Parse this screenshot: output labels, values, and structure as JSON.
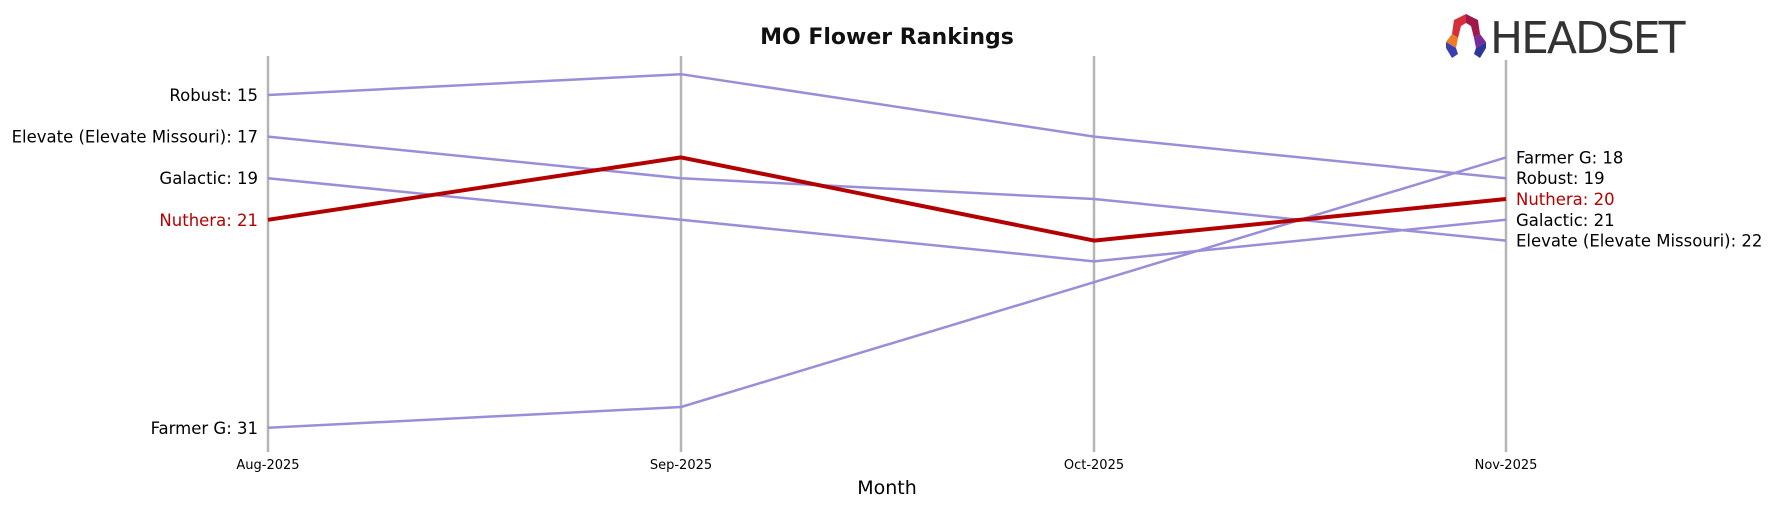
{
  "chart_data": {
    "type": "line",
    "subtype": "bump",
    "title": "MO Flower Rankings",
    "xlabel": "Month",
    "ylabel": "",
    "categories": [
      "Aug-2025",
      "Sep-2025",
      "Oct-2025",
      "Nov-2025"
    ],
    "y_inverted": true,
    "grid": "vertical lines at each month",
    "highlight": "Nuthera",
    "series": [
      {
        "name": "Robust",
        "values": [
          15,
          14,
          17,
          19
        ],
        "color": "#9b8ed8"
      },
      {
        "name": "Elevate (Elevate Missouri)",
        "values": [
          17,
          19,
          20,
          22
        ],
        "color": "#9b8ed8"
      },
      {
        "name": "Galactic",
        "values": [
          19,
          21,
          23,
          21
        ],
        "color": "#9b8ed8"
      },
      {
        "name": "Nuthera",
        "values": [
          21,
          18,
          22,
          20
        ],
        "color": "#b30000"
      },
      {
        "name": "Farmer G",
        "values": [
          31,
          30,
          24,
          18
        ],
        "color": "#9b8ed8"
      }
    ],
    "left_labels": [
      {
        "text": "Robust: 15",
        "rank": 15
      },
      {
        "text": "Elevate (Elevate Missouri): 17",
        "rank": 17
      },
      {
        "text": "Galactic: 19",
        "rank": 19
      },
      {
        "text": "Nuthera: 21",
        "rank": 21,
        "highlight": true
      },
      {
        "text": "Farmer G: 31",
        "rank": 31
      }
    ],
    "right_labels": [
      {
        "text": "Farmer G: 18",
        "rank": 18
      },
      {
        "text": "Robust: 19",
        "rank": 19
      },
      {
        "text": "Nuthera: 20",
        "rank": 20,
        "highlight": true
      },
      {
        "text": "Galactic: 21",
        "rank": 21
      },
      {
        "text": "Elevate (Elevate Missouri): 22",
        "rank": 22
      }
    ]
  },
  "branding": {
    "logo_text": "HEADSET"
  },
  "colors": {
    "highlight": "#b30000",
    "others": "#9b8ed8",
    "grid": "#b5b5b5"
  }
}
